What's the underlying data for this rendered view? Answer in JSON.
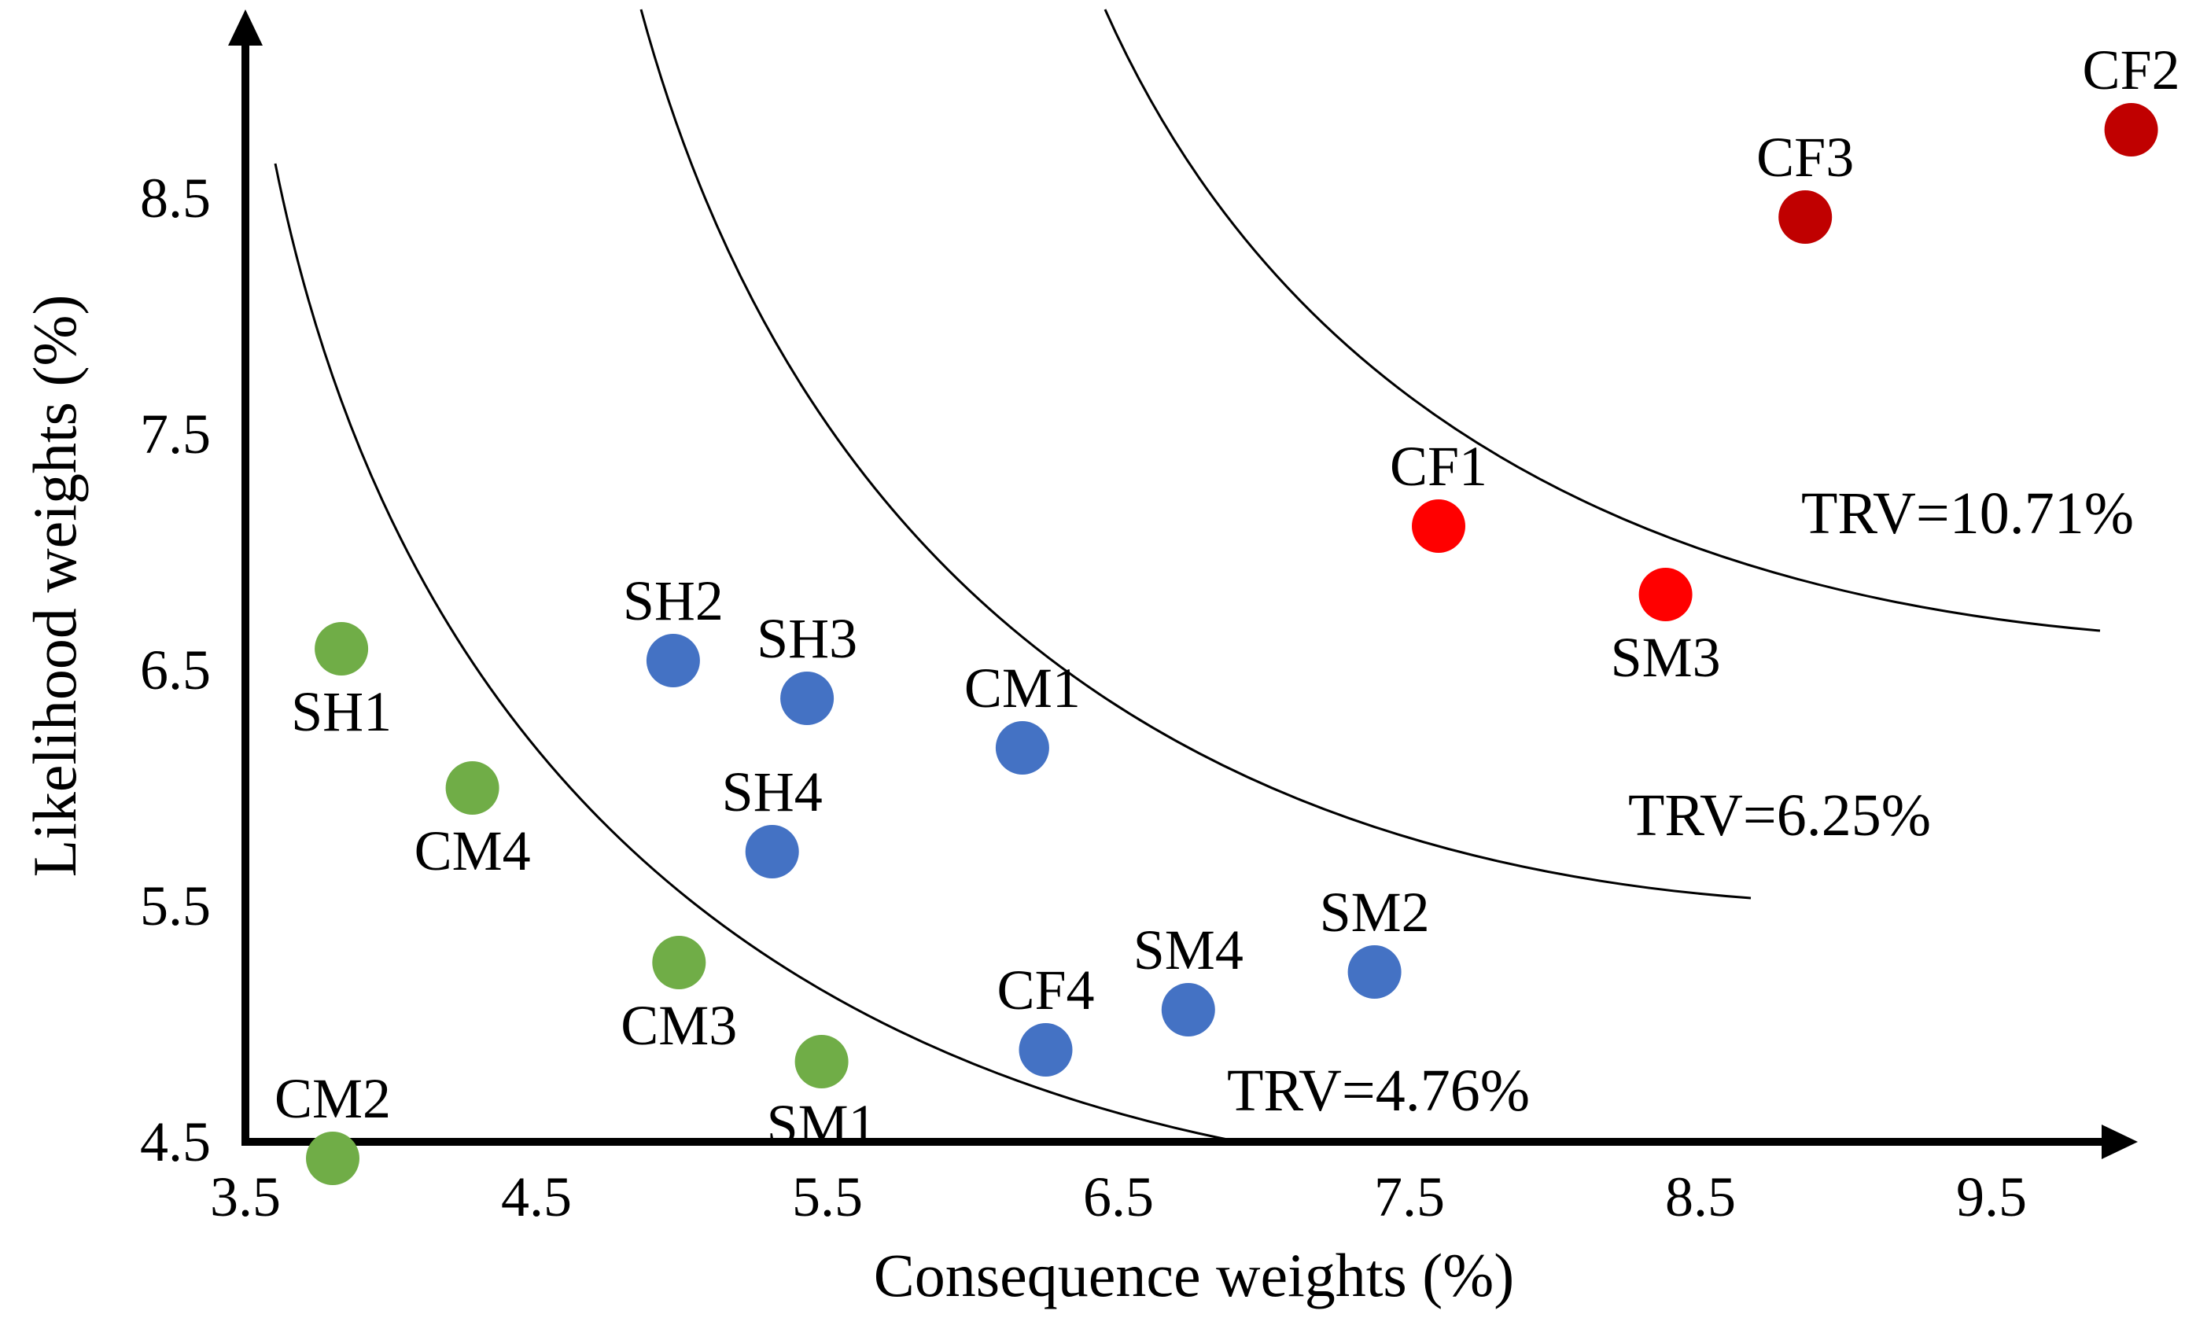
{
  "chart_data": {
    "type": "scatter",
    "title": "",
    "xlabel": "Consequence weights (%)",
    "ylabel": "Likelihood weights (%)",
    "xlim": [
      3.5,
      10.0
    ],
    "ylim": [
      4.5,
      9.0
    ],
    "xticks": [
      "3.5",
      "4.5",
      "5.5",
      "6.5",
      "7.5",
      "8.5",
      "9.5"
    ],
    "yticks": [
      "4.5",
      "5.5",
      "6.5",
      "7.5",
      "8.5"
    ],
    "grid": false,
    "colors": {
      "low": "#70AD47",
      "medium": "#4472C4",
      "high": "#FF0000",
      "very_high": "#C00000"
    },
    "points": [
      {
        "label": "SH1",
        "x": 3.83,
        "y": 6.59,
        "group": "low"
      },
      {
        "label": "CM4",
        "x": 4.28,
        "y": 6.0,
        "group": "low"
      },
      {
        "label": "CM3",
        "x": 4.99,
        "y": 5.26,
        "group": "low"
      },
      {
        "label": "SM1",
        "x": 5.48,
        "y": 4.84,
        "group": "low"
      },
      {
        "label": "CM2",
        "x": 3.8,
        "y": 4.43,
        "group": "low"
      },
      {
        "label": "SH2",
        "x": 4.97,
        "y": 6.54,
        "group": "medium"
      },
      {
        "label": "SH3",
        "x": 5.43,
        "y": 6.38,
        "group": "medium"
      },
      {
        "label": "CM1",
        "x": 6.17,
        "y": 6.17,
        "group": "medium"
      },
      {
        "label": "SH4",
        "x": 5.31,
        "y": 5.73,
        "group": "medium"
      },
      {
        "label": "SM2",
        "x": 7.38,
        "y": 5.22,
        "group": "medium"
      },
      {
        "label": "SM4",
        "x": 6.74,
        "y": 5.06,
        "group": "medium"
      },
      {
        "label": "CF4",
        "x": 6.25,
        "y": 4.89,
        "group": "medium"
      },
      {
        "label": "CF1",
        "x": 7.6,
        "y": 7.11,
        "group": "high"
      },
      {
        "label": "SM3",
        "x": 8.38,
        "y": 6.82,
        "group": "high"
      },
      {
        "label": "CF3",
        "x": 8.86,
        "y": 8.42,
        "group": "very_high"
      },
      {
        "label": "CF2",
        "x": 9.98,
        "y": 8.79,
        "group": "very_high"
      }
    ],
    "curves": [
      {
        "label": "TRV=4.76%",
        "x_start": 3.6,
        "x_end": 7.05
      },
      {
        "label": "TRV=6.25%",
        "x_start": 4.95,
        "x_end": 8.8
      },
      {
        "label": "TRV=10.71%",
        "x_start": 6.95,
        "x_end": 10.0
      }
    ]
  }
}
